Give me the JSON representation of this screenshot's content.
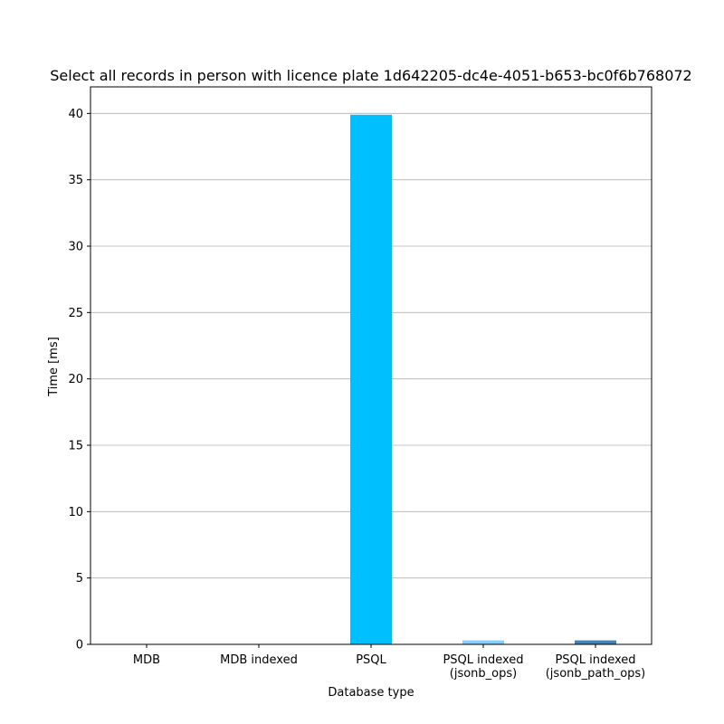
{
  "chart_data": {
    "type": "bar",
    "title": "Select all records in person with licence plate 1d642205-dc4e-4051-b653-bc0f6b768072",
    "xlabel": "Database type",
    "ylabel": "Time [ms]",
    "ylim": [
      0,
      42
    ],
    "yticks": [
      0,
      5,
      10,
      15,
      20,
      25,
      30,
      35,
      40
    ],
    "grid": "horizontal",
    "categories": [
      [
        "MDB"
      ],
      [
        "MDB indexed"
      ],
      [
        "PSQL"
      ],
      [
        "PSQL indexed",
        "(jsonb_ops)"
      ],
      [
        "PSQL indexed",
        "(jsonb_path_ops)"
      ]
    ],
    "values": [
      0.0,
      0.0,
      39.9,
      0.3,
      0.3
    ],
    "colors": [
      "#1f77b4",
      "#1f77b4",
      "#00bfff",
      "#87cefa",
      "#4682b4"
    ]
  }
}
